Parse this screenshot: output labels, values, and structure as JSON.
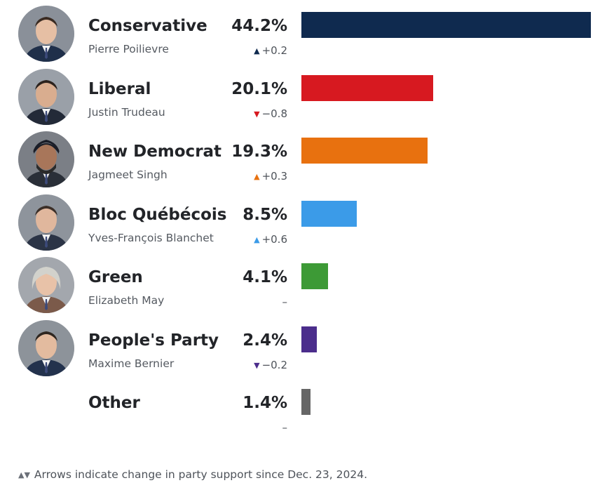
{
  "chart_data": {
    "type": "bar",
    "orientation": "horizontal",
    "categories": [
      "Conservative",
      "Liberal",
      "New Democrat",
      "Bloc Québécois",
      "Green",
      "People's Party",
      "Other"
    ],
    "values": [
      44.2,
      20.1,
      19.3,
      8.5,
      4.1,
      2.4,
      1.4
    ],
    "unit": "%",
    "xlim": [
      0,
      44.2
    ],
    "grid": false,
    "parties": [
      {
        "name": "Conservative",
        "leader": "Pierre Poilievre",
        "value": 44.2,
        "value_label": "44.2%",
        "change": "+0.2",
        "direction": "up",
        "color": "#0f2a4f",
        "photo": "pierre-poilievre-photo"
      },
      {
        "name": "Liberal",
        "leader": "Justin Trudeau",
        "value": 20.1,
        "value_label": "20.1%",
        "change": "−0.8",
        "direction": "down",
        "color": "#d71920",
        "photo": "justin-trudeau-photo"
      },
      {
        "name": "New Democrat",
        "leader": "Jagmeet Singh",
        "value": 19.3,
        "value_label": "19.3%",
        "change": "+0.3",
        "direction": "up",
        "color": "#e8710f",
        "photo": "jagmeet-singh-photo"
      },
      {
        "name": "Bloc Québécois",
        "leader": "Yves-François Blanchet",
        "value": 8.5,
        "value_label": "8.5%",
        "change": "+0.6",
        "direction": "up",
        "color": "#3b9be8",
        "photo": "yves-francois-blanchet-photo"
      },
      {
        "name": "Green",
        "leader": "Elizabeth May",
        "value": 4.1,
        "value_label": "4.1%",
        "change": "–",
        "direction": "none",
        "color": "#3d9a36",
        "photo": "elizabeth-may-photo"
      },
      {
        "name": "People's Party",
        "leader": "Maxime Bernier",
        "value": 2.4,
        "value_label": "2.4%",
        "change": "−0.2",
        "direction": "down",
        "color": "#4b2d8c",
        "photo": "maxime-bernier-photo"
      },
      {
        "name": "Other",
        "leader": "",
        "value": 1.4,
        "value_label": "1.4%",
        "change": "–",
        "direction": "none",
        "color": "#666666",
        "photo": ""
      }
    ],
    "footnote": {
      "arrows": "▲▼",
      "text": "Arrows indicate change in party support since Dec. 23, 2024."
    }
  }
}
